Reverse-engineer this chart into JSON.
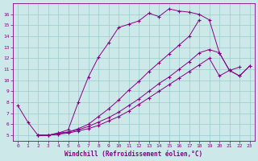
{
  "xlabel": "Windchill (Refroidissement éolien,°C)",
  "bg_color": "#cce8e8",
  "grid_color": "#99cccc",
  "line_color": "#880088",
  "xlim": [
    -0.5,
    23.5
  ],
  "ylim": [
    4.5,
    17.0
  ],
  "yticks": [
    5,
    6,
    7,
    8,
    9,
    10,
    11,
    12,
    13,
    14,
    15,
    16
  ],
  "xticks": [
    0,
    1,
    2,
    3,
    4,
    5,
    6,
    7,
    8,
    9,
    10,
    11,
    12,
    13,
    14,
    15,
    16,
    17,
    18,
    19,
    20,
    21,
    22,
    23
  ],
  "s1x": [
    0,
    1,
    2,
    3,
    4,
    5,
    6,
    7,
    8,
    9,
    10,
    11,
    12,
    13,
    14,
    15,
    16,
    17,
    18,
    19,
    20,
    21,
    22
  ],
  "s1y": [
    7.7,
    6.2,
    5.0,
    5.0,
    5.2,
    5.5,
    8.0,
    10.3,
    12.1,
    13.4,
    14.8,
    15.1,
    15.4,
    16.1,
    15.8,
    16.5,
    16.3,
    16.2,
    16.0,
    15.5,
    12.5,
    10.9,
    11.2
  ],
  "s2x": [
    2,
    3,
    4,
    5,
    6,
    7,
    8,
    9,
    10,
    11,
    12,
    13,
    14,
    15,
    16,
    17,
    18
  ],
  "s2y": [
    5.0,
    5.0,
    5.2,
    5.3,
    5.6,
    6.0,
    6.7,
    7.4,
    8.2,
    9.1,
    9.9,
    10.8,
    11.6,
    12.4,
    13.2,
    14.0,
    15.5
  ],
  "s3x": [
    2,
    3,
    4,
    5,
    6,
    7,
    8,
    9,
    10,
    11,
    12,
    13,
    14,
    15,
    16,
    17,
    18,
    19,
    20,
    21,
    22,
    23
  ],
  "s3y": [
    5.0,
    5.0,
    5.1,
    5.3,
    5.5,
    5.8,
    6.2,
    6.6,
    7.1,
    7.7,
    8.3,
    9.0,
    9.7,
    10.3,
    11.0,
    11.7,
    12.5,
    12.8,
    12.5,
    10.9,
    10.4,
    11.3
  ],
  "s4x": [
    2,
    3,
    4,
    5,
    6,
    7,
    8,
    9,
    10,
    11,
    12,
    13,
    14,
    15,
    16,
    17,
    18,
    19,
    20,
    21,
    22,
    23
  ],
  "s4y": [
    5.0,
    5.0,
    5.1,
    5.2,
    5.4,
    5.6,
    5.9,
    6.3,
    6.7,
    7.2,
    7.8,
    8.4,
    9.0,
    9.6,
    10.2,
    10.8,
    11.4,
    12.0,
    10.4,
    10.9,
    10.4,
    11.3
  ]
}
